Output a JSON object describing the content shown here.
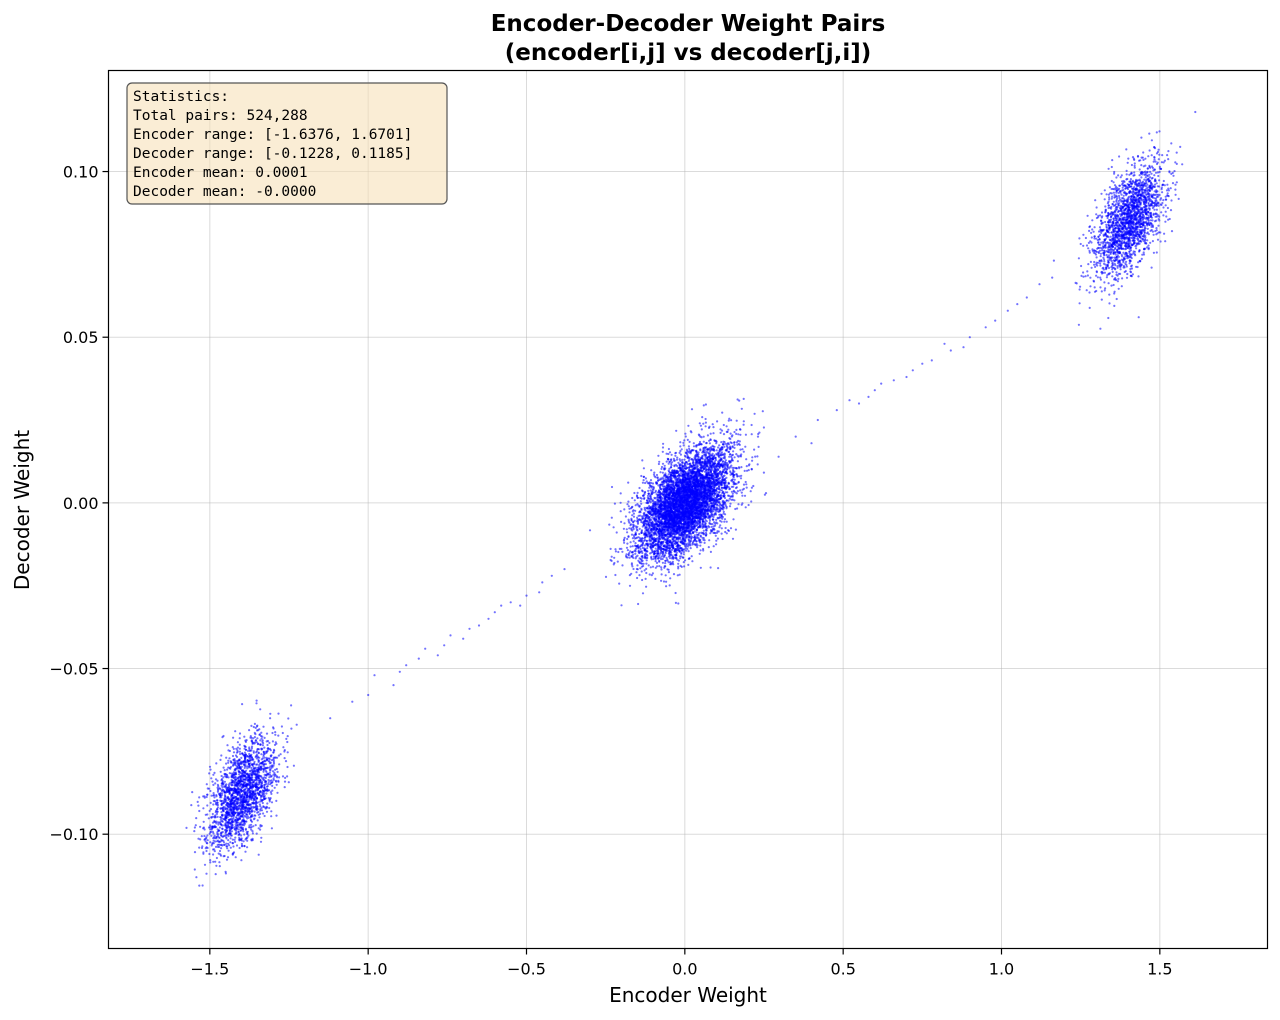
{
  "chart_data": {
    "type": "scatter",
    "title_lines": [
      "Encoder-Decoder Weight Pairs",
      "(encoder[i,j] vs decoder[j,i])"
    ],
    "xlabel": "Encoder Weight",
    "ylabel": "Decoder Weight",
    "xlim": [
      -1.82,
      1.84
    ],
    "ylim": [
      -0.1345,
      0.1305
    ],
    "x_ticks": [
      -1.5,
      -1.0,
      -0.5,
      0.0,
      0.5,
      1.0,
      1.5
    ],
    "x_tick_labels": [
      "−1.5",
      "−1.0",
      "−0.5",
      "0.0",
      "0.5",
      "1.0",
      "1.5"
    ],
    "y_ticks": [
      -0.1,
      -0.05,
      0.0,
      0.05,
      0.1
    ],
    "y_tick_labels": [
      "−0.10",
      "−0.05",
      "0.00",
      "0.05",
      "0.10"
    ],
    "grid": true,
    "point_color": "#0000ff",
    "stats_box": {
      "lines": [
        "Statistics:",
        "Total pairs: 524,288",
        "Encoder range: [-1.6376, 1.6701]",
        "Decoder range: [-0.1228, 0.1185]",
        "Encoder mean: 0.0001",
        "Decoder mean: -0.0000"
      ],
      "placement": "top-left",
      "background": "#f5deb3",
      "border": "#555555"
    },
    "clusters": [
      {
        "center_x": 0.0,
        "center_y": 0.0,
        "std_x": 0.075,
        "std_y": 0.0085,
        "corr": 0.55,
        "count": 6000
      },
      {
        "center_x": 1.4,
        "center_y": 0.085,
        "std_x": 0.055,
        "std_y": 0.0085,
        "corr": 0.55,
        "count": 2000
      },
      {
        "center_x": -1.4,
        "center_y": -0.088,
        "std_x": 0.055,
        "std_y": 0.0085,
        "corr": 0.55,
        "count": 2000
      }
    ],
    "bridge_points": [
      [
        -1.05,
        -0.06
      ],
      [
        -0.98,
        -0.052
      ],
      [
        -0.92,
        -0.055
      ],
      [
        -0.88,
        -0.049
      ],
      [
        -0.82,
        -0.044
      ],
      [
        -0.78,
        -0.046
      ],
      [
        -0.74,
        -0.04
      ],
      [
        -0.7,
        -0.041
      ],
      [
        -0.65,
        -0.037
      ],
      [
        -0.62,
        -0.035
      ],
      [
        -0.58,
        -0.031
      ],
      [
        -0.55,
        -0.03
      ],
      [
        -0.5,
        -0.028
      ],
      [
        -0.46,
        -0.027
      ],
      [
        -0.42,
        -0.022
      ],
      [
        -1.12,
        -0.065
      ],
      [
        -1.0,
        -0.058
      ],
      [
        -0.9,
        -0.051
      ],
      [
        -0.84,
        -0.047
      ],
      [
        -0.76,
        -0.043
      ],
      [
        -0.68,
        -0.038
      ],
      [
        -0.6,
        -0.033
      ],
      [
        -0.52,
        -0.031
      ],
      [
        -0.45,
        -0.024
      ],
      [
        -0.38,
        -0.02
      ],
      [
        0.35,
        0.02
      ],
      [
        0.42,
        0.025
      ],
      [
        0.48,
        0.028
      ],
      [
        0.55,
        0.03
      ],
      [
        0.6,
        0.034
      ],
      [
        0.66,
        0.037
      ],
      [
        0.72,
        0.04
      ],
      [
        0.78,
        0.043
      ],
      [
        0.84,
        0.046
      ],
      [
        0.9,
        0.05
      ],
      [
        0.95,
        0.053
      ],
      [
        1.02,
        0.058
      ],
      [
        1.08,
        0.062
      ],
      [
        1.12,
        0.066
      ],
      [
        1.16,
        0.068
      ],
      [
        0.4,
        0.018
      ],
      [
        0.52,
        0.031
      ],
      [
        0.58,
        0.032
      ],
      [
        0.7,
        0.038
      ],
      [
        0.82,
        0.048
      ],
      [
        0.88,
        0.047
      ],
      [
        0.98,
        0.055
      ],
      [
        1.05,
        0.06
      ],
      [
        0.62,
        0.036
      ],
      [
        0.75,
        0.042
      ]
    ]
  }
}
